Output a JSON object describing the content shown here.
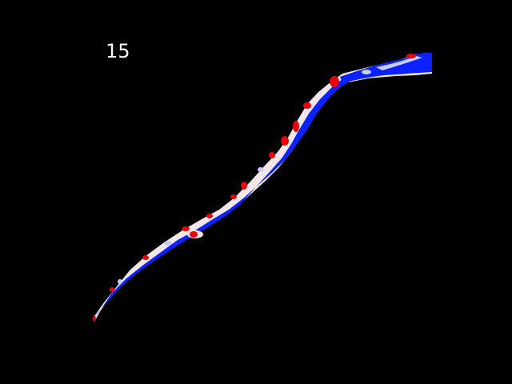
{
  "frame_number": "15",
  "colors": {
    "background": "#000000",
    "positive": "#e8000b",
    "negative": "#0a22ff",
    "neutral": "#f2e6e6",
    "label": "#ffffff"
  }
}
